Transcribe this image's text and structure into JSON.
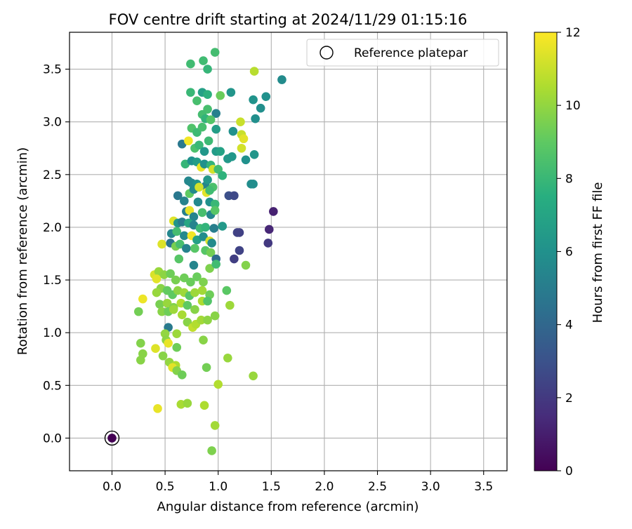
{
  "chart_data": {
    "type": "scatter",
    "title": "FOV centre drift starting at 2024/11/29 01:15:16",
    "xlabel": "Angular distance from reference (arcmin)",
    "ylabel": "Rotation from reference (arcmin)",
    "xlim": [
      -0.4,
      3.72
    ],
    "ylim": [
      -0.31,
      3.85
    ],
    "xticks": [
      "0.0",
      "0.5",
      "1.0",
      "1.5",
      "2.0",
      "2.5",
      "3.0",
      "3.5"
    ],
    "yticks": [
      "0.0",
      "0.5",
      "1.0",
      "1.5",
      "2.0",
      "2.5",
      "3.0",
      "3.5"
    ],
    "grid": true,
    "legend": {
      "placement": "top-right",
      "entries": [
        "Reference platepar"
      ]
    },
    "reference_point": {
      "x": 0.0,
      "y": 0.0,
      "hours": 0.0
    },
    "colorbar": {
      "label": "Hours from first FF file",
      "colormap": "viridis",
      "range": [
        0,
        12
      ],
      "ticks": [
        "0",
        "2",
        "4",
        "6",
        "8",
        "10",
        "12"
      ]
    },
    "point_fields": [
      "x",
      "y",
      "hours"
    ],
    "points": [
      [
        0.0,
        0.0,
        0.0
      ],
      [
        0.97,
        3.66,
        8.3
      ],
      [
        0.86,
        3.58,
        8.2
      ],
      [
        0.9,
        3.5,
        7.9
      ],
      [
        0.74,
        3.55,
        8.2
      ],
      [
        1.34,
        3.48,
        10.7
      ],
      [
        1.6,
        3.4,
        5.7
      ],
      [
        0.74,
        3.28,
        8.0
      ],
      [
        0.85,
        3.28,
        6.8
      ],
      [
        0.9,
        3.26,
        7.6
      ],
      [
        1.12,
        3.28,
        6.2
      ],
      [
        1.02,
        3.25,
        9.2
      ],
      [
        0.8,
        3.2,
        8.4
      ],
      [
        1.33,
        3.21,
        6.1
      ],
      [
        1.45,
        3.24,
        6.0
      ],
      [
        0.9,
        3.12,
        8.4
      ],
      [
        0.85,
        3.07,
        8.3
      ],
      [
        0.98,
        3.08,
        5.2
      ],
      [
        1.4,
        3.13,
        5.9
      ],
      [
        0.88,
        3.03,
        7.8
      ],
      [
        0.93,
        3.02,
        8.7
      ],
      [
        1.35,
        3.03,
        5.9
      ],
      [
        1.21,
        3.0,
        11.0
      ],
      [
        0.75,
        2.94,
        8.6
      ],
      [
        0.8,
        2.9,
        8.1
      ],
      [
        0.85,
        2.95,
        8.4
      ],
      [
        0.98,
        2.93,
        6.6
      ],
      [
        1.14,
        2.91,
        6.0
      ],
      [
        1.22,
        2.88,
        11.0
      ],
      [
        1.24,
        2.84,
        11.5
      ],
      [
        0.66,
        2.79,
        4.8
      ],
      [
        0.72,
        2.82,
        11.8
      ],
      [
        0.78,
        2.75,
        8.5
      ],
      [
        0.82,
        2.78,
        8.0
      ],
      [
        0.91,
        2.82,
        8.1
      ],
      [
        0.87,
        2.72,
        6.3
      ],
      [
        0.98,
        2.72,
        6.5
      ],
      [
        1.02,
        2.72,
        6.9
      ],
      [
        1.09,
        2.65,
        6.4
      ],
      [
        1.13,
        2.67,
        6.3
      ],
      [
        1.22,
        2.75,
        11.2
      ],
      [
        1.34,
        2.69,
        6.2
      ],
      [
        1.26,
        2.64,
        6.0
      ],
      [
        0.69,
        2.6,
        7.9
      ],
      [
        0.75,
        2.63,
        6.0
      ],
      [
        0.8,
        2.62,
        6.6
      ],
      [
        0.84,
        2.57,
        11.6
      ],
      [
        0.87,
        2.6,
        6.0
      ],
      [
        0.93,
        2.59,
        7.8
      ],
      [
        0.95,
        2.55,
        11.2
      ],
      [
        1.0,
        2.55,
        8.2
      ],
      [
        1.04,
        2.49,
        7.7
      ],
      [
        0.72,
        2.44,
        5.5
      ],
      [
        0.75,
        2.42,
        5.6
      ],
      [
        0.8,
        2.41,
        6.1
      ],
      [
        0.88,
        2.39,
        5.3
      ],
      [
        0.9,
        2.45,
        6.3
      ],
      [
        0.95,
        2.38,
        8.5
      ],
      [
        1.31,
        2.41,
        5.8
      ],
      [
        1.33,
        2.41,
        5.8
      ],
      [
        0.73,
        2.32,
        9.0
      ],
      [
        0.77,
        2.36,
        5.7
      ],
      [
        0.82,
        2.38,
        11.2
      ],
      [
        0.89,
        2.33,
        11.5
      ],
      [
        0.92,
        2.35,
        8.2
      ],
      [
        0.62,
        2.3,
        4.8
      ],
      [
        0.68,
        2.25,
        5.3
      ],
      [
        0.81,
        2.24,
        5.6
      ],
      [
        0.92,
        2.24,
        6.0
      ],
      [
        0.97,
        2.22,
        8.0
      ],
      [
        1.1,
        2.3,
        2.9
      ],
      [
        1.15,
        2.3,
        2.6
      ],
      [
        0.7,
        2.15,
        5.2
      ],
      [
        0.73,
        2.16,
        11.6
      ],
      [
        0.77,
        2.1,
        5.4
      ],
      [
        0.85,
        2.14,
        8.4
      ],
      [
        0.93,
        2.12,
        5.5
      ],
      [
        0.97,
        2.16,
        8.8
      ],
      [
        1.52,
        2.15,
        1.1
      ],
      [
        0.58,
        2.06,
        11.4
      ],
      [
        0.62,
        2.04,
        6.2
      ],
      [
        0.66,
        2.05,
        5.0
      ],
      [
        0.72,
        2.04,
        7.1
      ],
      [
        0.77,
        2.02,
        5.3
      ],
      [
        0.83,
        1.99,
        8.1
      ],
      [
        0.88,
        2.0,
        7.8
      ],
      [
        0.96,
        1.99,
        5.1
      ],
      [
        1.04,
        2.01,
        6.4
      ],
      [
        1.18,
        1.95,
        2.4
      ],
      [
        1.2,
        1.95,
        2.3
      ],
      [
        1.48,
        1.98,
        1.3
      ],
      [
        0.56,
        1.94,
        5.5
      ],
      [
        0.61,
        1.96,
        8.3
      ],
      [
        0.68,
        1.92,
        5.6
      ],
      [
        0.75,
        1.92,
        11.8
      ],
      [
        0.8,
        1.88,
        6.8
      ],
      [
        0.86,
        1.91,
        5.8
      ],
      [
        0.92,
        1.87,
        11.3
      ],
      [
        0.94,
        1.85,
        5.7
      ],
      [
        1.47,
        1.85,
        2.0
      ],
      [
        0.47,
        1.84,
        11.4
      ],
      [
        0.55,
        1.85,
        4.6
      ],
      [
        0.6,
        1.82,
        9.5
      ],
      [
        0.64,
        1.84,
        8.4
      ],
      [
        0.7,
        1.8,
        5.3
      ],
      [
        0.78,
        1.8,
        8.8
      ],
      [
        0.88,
        1.78,
        8.8
      ],
      [
        0.93,
        1.76,
        9.4
      ],
      [
        1.2,
        1.78,
        2.4
      ],
      [
        0.63,
        1.7,
        8.8
      ],
      [
        0.98,
        1.7,
        4.2
      ],
      [
        1.15,
        1.7,
        2.2
      ],
      [
        0.77,
        1.64,
        5.4
      ],
      [
        0.92,
        1.61,
        9.6
      ],
      [
        0.98,
        1.65,
        8.2
      ],
      [
        1.26,
        1.64,
        9.7
      ],
      [
        0.4,
        1.55,
        11.3
      ],
      [
        0.44,
        1.58,
        10.1
      ],
      [
        0.49,
        1.55,
        9.9
      ],
      [
        0.55,
        1.56,
        9.3
      ],
      [
        0.6,
        1.5,
        9.5
      ],
      [
        0.68,
        1.52,
        9.3
      ],
      [
        0.74,
        1.48,
        9.2
      ],
      [
        0.8,
        1.53,
        9.2
      ],
      [
        0.86,
        1.48,
        9.6
      ],
      [
        0.42,
        1.51,
        11.5
      ],
      [
        0.46,
        1.42,
        9.8
      ],
      [
        0.52,
        1.4,
        9.1
      ],
      [
        0.57,
        1.36,
        9.0
      ],
      [
        0.62,
        1.4,
        9.9
      ],
      [
        0.68,
        1.38,
        10.2
      ],
      [
        0.73,
        1.35,
        8.8
      ],
      [
        0.78,
        1.38,
        10.2
      ],
      [
        0.85,
        1.4,
        10.3
      ],
      [
        0.92,
        1.36,
        9.3
      ],
      [
        1.08,
        1.4,
        8.9
      ],
      [
        0.42,
        1.38,
        10.1
      ],
      [
        0.29,
        1.32,
        11.7
      ],
      [
        0.45,
        1.27,
        9.5
      ],
      [
        0.52,
        1.28,
        10.1
      ],
      [
        0.58,
        1.24,
        9.7
      ],
      [
        0.65,
        1.28,
        10.6
      ],
      [
        0.71,
        1.26,
        9.0
      ],
      [
        0.78,
        1.22,
        9.8
      ],
      [
        0.85,
        1.3,
        10.5
      ],
      [
        0.9,
        1.3,
        8.7
      ],
      [
        1.11,
        1.26,
        10.2
      ],
      [
        0.25,
        1.2,
        9.4
      ],
      [
        0.47,
        1.2,
        9.8
      ],
      [
        0.53,
        1.2,
        9.3
      ],
      [
        0.58,
        1.22,
        10.2
      ],
      [
        0.66,
        1.17,
        10.4
      ],
      [
        0.71,
        1.1,
        9.8
      ],
      [
        0.76,
        1.05,
        10.9
      ],
      [
        0.79,
        1.08,
        10.6
      ],
      [
        0.84,
        1.12,
        10.3
      ],
      [
        0.9,
        1.12,
        9.9
      ],
      [
        0.97,
        1.16,
        9.8
      ],
      [
        0.53,
        1.05,
        4.9
      ],
      [
        0.5,
        0.99,
        10.0
      ],
      [
        0.61,
        0.99,
        10.2
      ],
      [
        0.27,
        0.9,
        9.7
      ],
      [
        0.51,
        0.93,
        9.9
      ],
      [
        0.53,
        0.9,
        11.6
      ],
      [
        0.41,
        0.85,
        11.4
      ],
      [
        0.61,
        0.86,
        9.3
      ],
      [
        0.86,
        0.93,
        9.8
      ],
      [
        0.29,
        0.8,
        9.8
      ],
      [
        0.27,
        0.74,
        9.8
      ],
      [
        0.48,
        0.78,
        9.8
      ],
      [
        0.54,
        0.72,
        10.0
      ],
      [
        0.6,
        0.69,
        10.5
      ],
      [
        0.57,
        0.67,
        11.5
      ],
      [
        0.61,
        0.64,
        9.7
      ],
      [
        0.66,
        0.6,
        9.3
      ],
      [
        0.89,
        0.67,
        9.4
      ],
      [
        1.09,
        0.76,
        10.1
      ],
      [
        1.0,
        0.51,
        10.6
      ],
      [
        1.33,
        0.59,
        10.1
      ],
      [
        0.65,
        0.32,
        10.4
      ],
      [
        0.71,
        0.33,
        10.1
      ],
      [
        0.43,
        0.28,
        11.6
      ],
      [
        0.87,
        0.31,
        10.5
      ],
      [
        0.97,
        0.12,
        10.3
      ],
      [
        0.94,
        -0.12,
        9.6
      ]
    ]
  }
}
